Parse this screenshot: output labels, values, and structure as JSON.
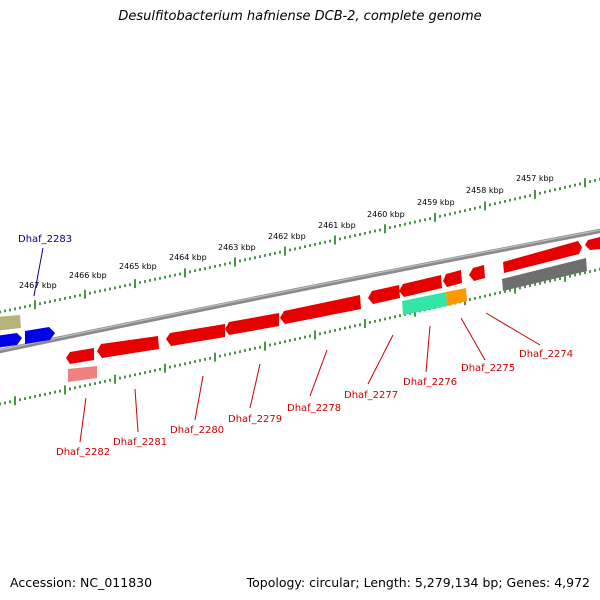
{
  "title": "Desulfitobacterium hafniense DCB-2, complete genome",
  "footer": {
    "accession": "Accession: NC_011830",
    "topology": "Topology: circular; Length: 5,279,134 bp; Genes: 4,972"
  },
  "colors": {
    "backbone": "#8a8a8a",
    "tick": "#1f7a1f",
    "gene_red": "#e60000",
    "gene_pale_red": "#f08080",
    "gene_blue": "#0000e6",
    "gene_olive": "#b5b47a",
    "gene_gray": "#6e6e6e",
    "gene_green": "#33e6a6",
    "gene_orange": "#ff9900",
    "label_red": "#cc0000",
    "label_blue": "#00008b"
  },
  "kbp_labels": [
    "2467 kbp",
    "2466 kbp",
    "2465 kbp",
    "2464 kbp",
    "2463 kbp",
    "2462 kbp",
    "2461 kbp",
    "2460 kbp",
    "2459 kbp",
    "2458 kbp",
    "2457 kbp"
  ],
  "gene_labels": [
    {
      "text": "Dhaf_2283",
      "color": "blue"
    },
    {
      "text": "Dhaf_2282",
      "color": "red"
    },
    {
      "text": "Dhaf_2281",
      "color": "red"
    },
    {
      "text": "Dhaf_2280",
      "color": "red"
    },
    {
      "text": "Dhaf_2279",
      "color": "red"
    },
    {
      "text": "Dhaf_2278",
      "color": "red"
    },
    {
      "text": "Dhaf_2277",
      "color": "red"
    },
    {
      "text": "Dhaf_2276",
      "color": "red"
    },
    {
      "text": "Dhaf_2275",
      "color": "red"
    },
    {
      "text": "Dhaf_2274",
      "color": "red"
    }
  ]
}
